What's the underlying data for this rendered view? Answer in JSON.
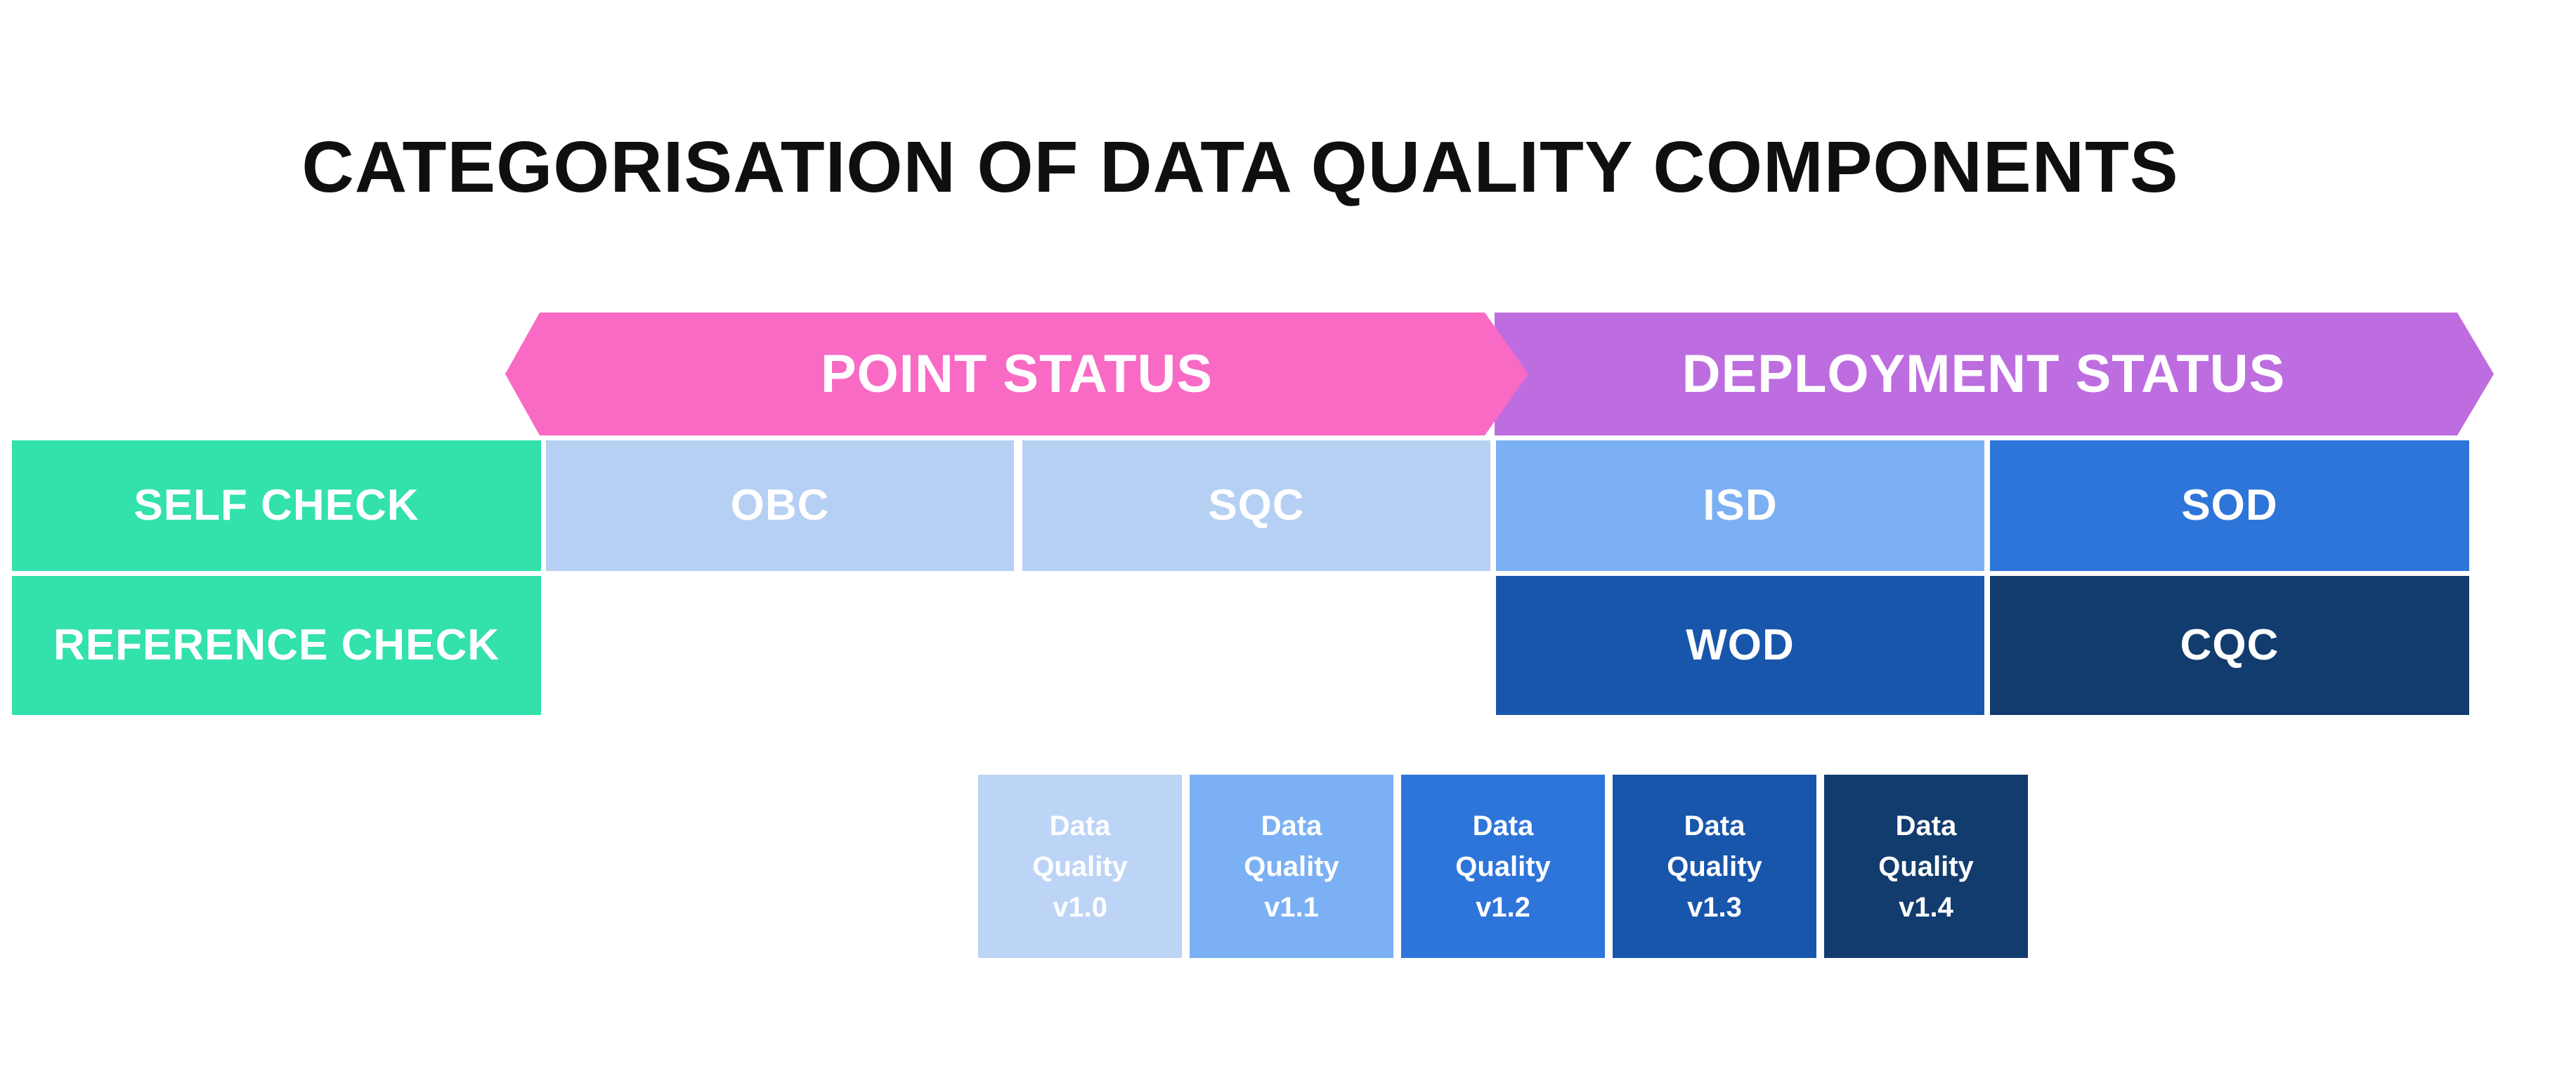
{
  "title": "CATEGORISATION OF DATA QUALITY COMPONENTS",
  "banners": {
    "point_status": {
      "label": "POINT STATUS",
      "color": "#F96AC5"
    },
    "deployment_status": {
      "label": "DEPLOYMENT STATUS",
      "color": "#BD6DE0"
    }
  },
  "row_headers": {
    "self_check": {
      "label": "SELF CHECK",
      "color": "#32E1AC"
    },
    "reference_check": {
      "label": "REFERENCE CHECK",
      "color": "#32E1AC"
    }
  },
  "cells": {
    "obc": {
      "label": "OBC",
      "color": "#B6D0F4"
    },
    "sqc": {
      "label": "SQC",
      "color": "#B6D0F4"
    },
    "isd": {
      "label": "ISD",
      "color": "#7BB0F4"
    },
    "sod": {
      "label": "SOD",
      "color": "#2E75DA"
    },
    "wod": {
      "label": "WOD",
      "color": "#1856AC"
    },
    "cqc": {
      "label": "CQC",
      "color": "#123C6E"
    }
  },
  "legend": {
    "items": [
      {
        "name": "Data Quality v1.0",
        "lines": [
          "Data",
          "Quality",
          "v1.0"
        ],
        "color": "#BCD4F6"
      },
      {
        "name": "Data Quality v1.1",
        "lines": [
          "Data",
          "Quality",
          "v1.1"
        ],
        "color": "#7BB0F4"
      },
      {
        "name": "Data Quality v1.2",
        "lines": [
          "Data",
          "Quality",
          "v1.2"
        ],
        "color": "#2E75DA"
      },
      {
        "name": "Data Quality v1.3",
        "lines": [
          "Data",
          "Quality",
          "v1.3"
        ],
        "color": "#1856AC"
      },
      {
        "name": "Data Quality v1.4",
        "lines": [
          "Data",
          "Quality",
          "v1.4"
        ],
        "color": "#123C6E"
      }
    ]
  },
  "text_colors": {
    "title": "#0F0F0F",
    "on_fill": "#FFFFFF"
  },
  "background": "#FFFFFF"
}
